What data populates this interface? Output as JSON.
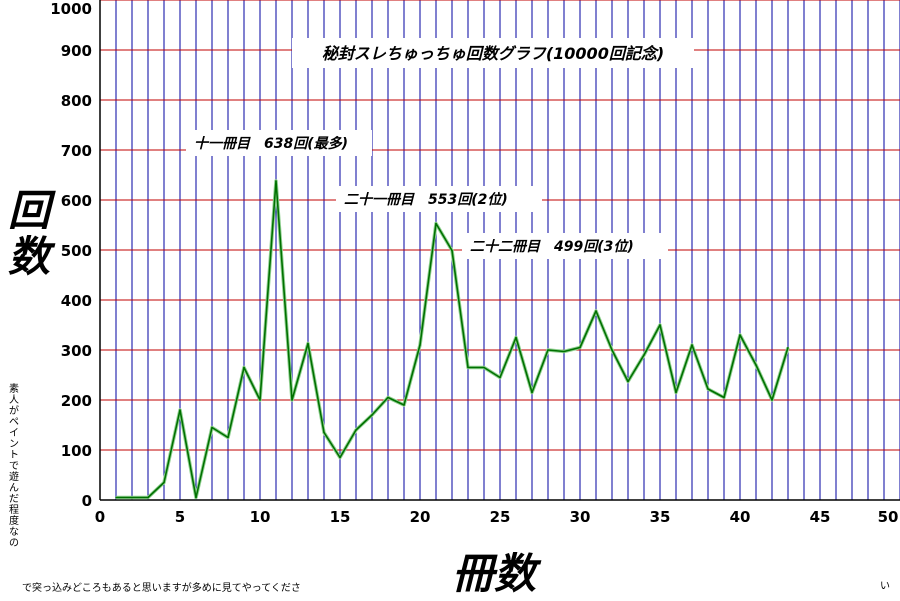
{
  "chart_data": {
    "type": "line",
    "title": "秘封スレちゅっちゅ回数グラフ(10000回記念)",
    "xlabel": "冊数",
    "ylabel": "回数",
    "xlim": [
      0,
      50
    ],
    "ylim": [
      0,
      1000
    ],
    "x_ticks": [
      "0",
      "5",
      "10",
      "15",
      "20",
      "25",
      "30",
      "35",
      "40",
      "45",
      "50"
    ],
    "y_ticks": [
      "0",
      "100",
      "200",
      "300",
      "400",
      "500",
      "600",
      "700",
      "800",
      "900",
      "1000"
    ],
    "grid": true,
    "series": [
      {
        "x": [
          1,
          2,
          3,
          4,
          5,
          6,
          7,
          8,
          9,
          10,
          11,
          12,
          13,
          14,
          15,
          16,
          17,
          18,
          19,
          20,
          21,
          22,
          23,
          24,
          25,
          26,
          27,
          28,
          29,
          30,
          31,
          32,
          33,
          34,
          35,
          36,
          37,
          38,
          39,
          40,
          41,
          42,
          43
        ],
        "values": [
          5,
          5,
          5,
          35,
          180,
          5,
          145,
          125,
          265,
          200,
          638,
          200,
          313,
          135,
          85,
          140,
          170,
          205,
          190,
          310,
          553,
          499,
          265,
          265,
          245,
          325,
          215,
          300,
          297,
          305,
          378,
          300,
          237,
          290,
          350,
          215,
          310,
          222,
          205,
          330,
          270,
          200,
          305
        ]
      }
    ],
    "annotations": [
      {
        "text": "十一冊目　638回(最多)",
        "x": 11,
        "y": 638
      },
      {
        "text": "二十一冊目　553回(2位)",
        "x": 21,
        "y": 553
      },
      {
        "text": "二十二冊目　499回(3位)",
        "x": 22,
        "y": 499
      }
    ],
    "notes": [
      "素人がペイントで遊んだ程度なの",
      "で突っ込みどころもあると思いますが多めに見てやってくださ",
      "い"
    ]
  },
  "colors": {
    "vertical_grid": "#0000a0",
    "horizontal_grid": "#c00000",
    "line": "#007000",
    "line_shadow": "#90d090"
  }
}
